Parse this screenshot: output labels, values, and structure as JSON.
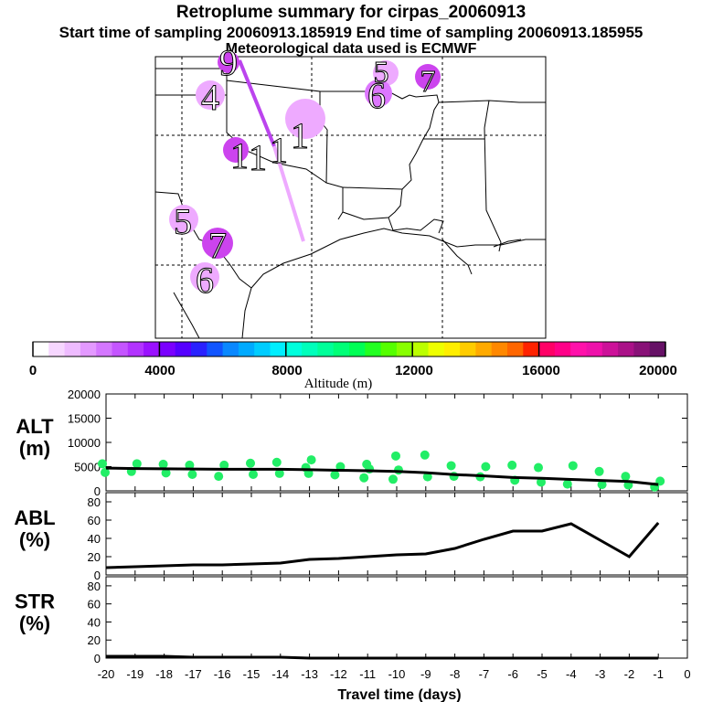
{
  "header": {
    "title": "Retroplume summary for cirpas_20060913",
    "sampling": "Start time of sampling 20060913.185919     End time of sampling 20060913.185955",
    "met": "Meteorological data used is ECMWF"
  },
  "map": {
    "plume_labels": [
      "9",
      "5",
      "6",
      "7",
      "4",
      "1",
      "1",
      "1",
      "1",
      "5",
      "7",
      "6"
    ]
  },
  "colorbar": {
    "ticks": [
      "0",
      "4000",
      "8000",
      "12000",
      "16000",
      "20000"
    ],
    "label": "Altitude (m)"
  },
  "chart_data": [
    {
      "type": "scatter",
      "title": "ALT (m)",
      "ylabel": "ALT\n(m)",
      "ylim": [
        0,
        20000
      ],
      "yticks": [
        0,
        5000,
        10000,
        15000,
        20000
      ],
      "xlim": [
        -20,
        0
      ],
      "mean_line": {
        "x": [
          -20,
          -19,
          -18,
          -17,
          -16,
          -15,
          -14,
          -13,
          -12,
          -11,
          -10,
          -9,
          -8,
          -7,
          -6,
          -5,
          -4,
          -3,
          -2,
          -1
        ],
        "y": [
          4700,
          4600,
          4550,
          4500,
          4450,
          4450,
          4450,
          4350,
          4250,
          4150,
          4000,
          3750,
          3350,
          3100,
          2750,
          2600,
          2350,
          2150,
          1950,
          1300
        ]
      },
      "points": {
        "x": [
          -20,
          -20,
          -19,
          -19,
          -18,
          -18,
          -17,
          -17,
          -16,
          -16,
          -15,
          -15,
          -14,
          -14,
          -13,
          -13,
          -13,
          -12,
          -12,
          -11,
          -11,
          -11,
          -10,
          -10,
          -10,
          -9,
          -9,
          -8,
          -8,
          -7,
          -7,
          -6,
          -6,
          -5,
          -5,
          -4,
          -4,
          -3,
          -3,
          -2,
          -2,
          -1,
          -1
        ],
        "y": [
          5600,
          3800,
          5600,
          4000,
          5500,
          3700,
          5300,
          3400,
          5300,
          3000,
          5700,
          3400,
          5900,
          3600,
          6400,
          4800,
          3600,
          5000,
          3300,
          5500,
          4500,
          2700,
          7200,
          4300,
          2400,
          7400,
          2900,
          5200,
          3000,
          5000,
          2900,
          5300,
          2200,
          4800,
          1800,
          5200,
          1400,
          4000,
          1300,
          3000,
          1200,
          2000,
          800
        ]
      }
    },
    {
      "type": "line",
      "title": "ABL (%)",
      "ylabel": "ABL\n(%)",
      "ylim": [
        0,
        90
      ],
      "yticks": [
        0,
        20,
        40,
        60,
        80
      ],
      "x": [
        -20,
        -19,
        -18,
        -17,
        -16,
        -15,
        -14,
        -13,
        -12,
        -11,
        -10,
        -9,
        -8,
        -7,
        -6,
        -5,
        -4,
        -3,
        -2,
        -1
      ],
      "values": [
        8,
        9,
        10,
        11,
        11,
        12,
        13,
        17,
        18,
        20,
        22,
        23,
        29,
        39,
        48,
        48,
        56,
        38,
        20,
        57
      ]
    },
    {
      "type": "line",
      "title": "STR (%)",
      "ylabel": "STR\n(%)",
      "ylim": [
        0,
        90
      ],
      "yticks": [
        0,
        20,
        40,
        60,
        80
      ],
      "x": [
        -20,
        -19,
        -18,
        -17,
        -16,
        -15,
        -14,
        -13,
        -12,
        -11,
        -10,
        -9,
        -8,
        -7,
        -6,
        -5,
        -4,
        -3,
        -2,
        -1
      ],
      "values": [
        2,
        2,
        2,
        1,
        1,
        1,
        1,
        0,
        0,
        0,
        0,
        0,
        0,
        0,
        0,
        0,
        0,
        0,
        0,
        0
      ],
      "xticks": [
        "-20",
        "-19",
        "-18",
        "-17",
        "-16",
        "-15",
        "-14",
        "-13",
        "-12",
        "-11",
        "-10",
        "-9",
        "-8",
        "-7",
        "-6",
        "-5",
        "-4",
        "-3",
        "-2",
        "-1",
        "0"
      ],
      "xlabel": "Travel time (days)"
    }
  ],
  "palette": {
    "plume": "#cc44ee",
    "plume_light": "#eeaaff",
    "points": "#22ee66",
    "line": "#000000"
  }
}
